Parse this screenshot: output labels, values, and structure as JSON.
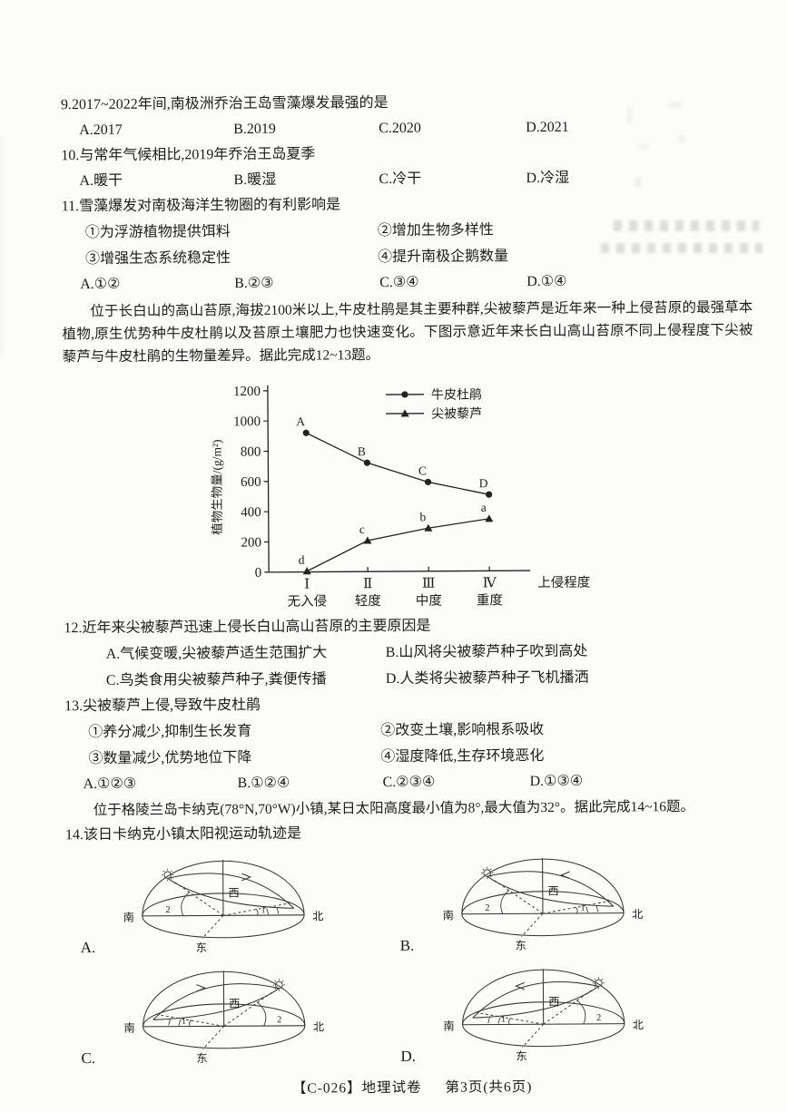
{
  "q9": {
    "stem": "9.2017~2022年间,南极洲乔治王岛雪藻爆发最强的是",
    "options": [
      "A.2017",
      "B.2019",
      "C.2020",
      "D.2021"
    ]
  },
  "q10": {
    "stem": "10.与常年气候相比,2019年乔治王岛夏季",
    "options": [
      "A.暖干",
      "B.暖湿",
      "C.冷干",
      "D.冷湿"
    ]
  },
  "q11": {
    "stem": "11.雪藻爆发对南极海洋生物圈的有利影响是",
    "items": [
      "①为浮游植物提供饵料",
      "②增加生物多样性",
      "③增强生态系统稳定性",
      "④提升南极企鹅数量"
    ],
    "options": [
      "A.①②",
      "B.②③",
      "C.③④",
      "D.①④"
    ]
  },
  "passage_tundra": "位于长白山的高山苔原,海拔2100米以上,牛皮杜鹃是其主要种群,尖被藜芦是近年来一种上侵苔原的最强草本植物,原生优势种牛皮杜鹃以及苔原土壤肥力也快速变化。下图示意近年来长白山高山苔原不同上侵程度下尖被藜芦与牛皮杜鹃的生物量差异。据此完成12~13题。",
  "chart_data": {
    "type": "line",
    "title": "",
    "xlabel": "上侵程度",
    "ylabel": "植物生物量/(g/m²)",
    "ylim": [
      0,
      1200
    ],
    "ytick_step": 200,
    "grid": false,
    "legend_position": "top-right",
    "categories": [
      {
        "numeral": "Ⅰ",
        "name": "无入侵"
      },
      {
        "numeral": "Ⅱ",
        "name": "轻度"
      },
      {
        "numeral": "Ⅲ",
        "name": "中度"
      },
      {
        "numeral": "Ⅳ",
        "name": "重度"
      }
    ],
    "series": [
      {
        "name": "牛皮杜鹃",
        "marker": "circle",
        "values": [
          920,
          720,
          590,
          505
        ],
        "point_labels": [
          "A",
          "B",
          "C",
          "D"
        ]
      },
      {
        "name": "尖被藜芦",
        "marker": "triangle",
        "values": [
          5,
          205,
          285,
          345
        ],
        "point_labels": [
          "d",
          "c",
          "b",
          "a"
        ]
      }
    ]
  },
  "q12": {
    "stem": "12.近年来尖被藜芦迅速上侵长白山高山苔原的主要原因是",
    "options": [
      "A.气候变暖,尖被藜芦适生范围扩大",
      "B.山风将尖被藜芦种子吹到高处",
      "C.鸟类食用尖被藜芦种子,粪便传播",
      "D.人类将尖被藜芦种子飞机播洒"
    ]
  },
  "q13": {
    "stem": "13.尖被藜芦上侵,导致牛皮杜鹃",
    "items": [
      "①养分减少,抑制生长发育",
      "②改变土壤,影响根系吸收",
      "③数量减少,优势地位下降",
      "④湿度降低,生存环境恶化"
    ],
    "options": [
      "A.①②③",
      "B.①②④",
      "C.②③④",
      "D.①③④"
    ]
  },
  "passage_qaanaaq": "位于格陵兰岛卡纳克(78°N,70°W)小镇,某日太阳高度最小值为8°,最大值为32°。据此完成14~16题。",
  "q14": {
    "stem": "14.该日卡纳克小镇太阳视运动轨迹是",
    "diagrams": [
      {
        "letter": "A.",
        "sun_side": "left",
        "arrow": "right"
      },
      {
        "letter": "B.",
        "sun_side": "left",
        "arrow": "left"
      },
      {
        "letter": "C.",
        "sun_side": "right",
        "arrow": "right"
      },
      {
        "letter": "D.",
        "sun_side": "right",
        "arrow": "left"
      }
    ]
  },
  "sun_diagram_labels": {
    "south": "南",
    "north": "北",
    "west": "西",
    "east": "东",
    "angle_big": "2",
    "angle_small": "1"
  },
  "footer": {
    "code": "【C-026】地理试卷",
    "page_info": "第3页(共6页)"
  }
}
